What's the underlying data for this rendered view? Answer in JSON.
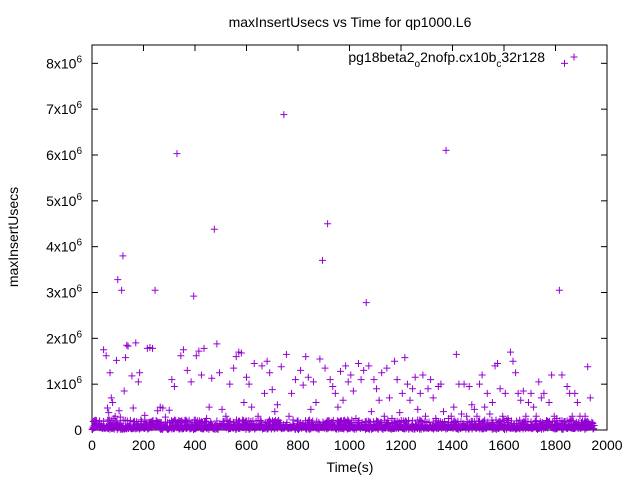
{
  "chart_data": {
    "type": "scatter",
    "title": "maxInsertUsecs vs Time for qp1000.L6",
    "xlabel": "Time(s)",
    "ylabel": "maxInsertUsecs",
    "xlim": [
      0,
      2000
    ],
    "ylim": [
      0,
      8400000
    ],
    "x_ticks": [
      0,
      200,
      400,
      600,
      800,
      1000,
      1200,
      1400,
      1600,
      1800,
      2000
    ],
    "y_ticks": [
      {
        "value": 0,
        "mant": "0",
        "exp": ""
      },
      {
        "value": 1000000,
        "mant": "1x10",
        "exp": "6"
      },
      {
        "value": 2000000,
        "mant": "2x10",
        "exp": "6"
      },
      {
        "value": 3000000,
        "mant": "3x10",
        "exp": "6"
      },
      {
        "value": 4000000,
        "mant": "4x10",
        "exp": "6"
      },
      {
        "value": 5000000,
        "mant": "5x10",
        "exp": "6"
      },
      {
        "value": 6000000,
        "mant": "6x10",
        "exp": "6"
      },
      {
        "value": 7000000,
        "mant": "7x10",
        "exp": "6"
      },
      {
        "value": 8000000,
        "mant": "8x10",
        "exp": "6"
      }
    ],
    "legend": {
      "position": "top-right",
      "parts": [
        {
          "t": "pg18beta2",
          "s": "normal"
        },
        {
          "t": "o",
          "s": "sub"
        },
        {
          "t": "2nofp.cx10b",
          "s": "normal"
        },
        {
          "t": "c",
          "s": "sub"
        },
        {
          "t": "32r128",
          "s": "normal"
        }
      ]
    },
    "series": [
      {
        "color": "#9400d3",
        "marker": "plus",
        "points": [
          [
            30,
            50000
          ],
          [
            45,
            1750000
          ],
          [
            55,
            1620000
          ],
          [
            60,
            480000
          ],
          [
            65,
            380000
          ],
          [
            70,
            1250000
          ],
          [
            75,
            700000
          ],
          [
            80,
            600000
          ],
          [
            85,
            250000
          ],
          [
            90,
            300000
          ],
          [
            95,
            1520000
          ],
          [
            100,
            3280000
          ],
          [
            105,
            420000
          ],
          [
            110,
            280000
          ],
          [
            115,
            3050000
          ],
          [
            120,
            3800000
          ],
          [
            125,
            850000
          ],
          [
            130,
            1580000
          ],
          [
            135,
            1850000
          ],
          [
            140,
            1830000
          ],
          [
            155,
            1180000
          ],
          [
            160,
            480000
          ],
          [
            170,
            1900000
          ],
          [
            180,
            1050000
          ],
          [
            185,
            1250000
          ],
          [
            190,
            220000
          ],
          [
            205,
            320000
          ],
          [
            215,
            1780000
          ],
          [
            225,
            1800000
          ],
          [
            235,
            1780000
          ],
          [
            245,
            3050000
          ],
          [
            255,
            420000
          ],
          [
            265,
            500000
          ],
          [
            275,
            480000
          ],
          [
            285,
            280000
          ],
          [
            300,
            430000
          ],
          [
            310,
            1100000
          ],
          [
            320,
            950000
          ],
          [
            330,
            6030000
          ],
          [
            345,
            1620000
          ],
          [
            355,
            1750000
          ],
          [
            370,
            1300000
          ],
          [
            385,
            1050000
          ],
          [
            395,
            2920000
          ],
          [
            405,
            1620000
          ],
          [
            415,
            1720000
          ],
          [
            425,
            1200000
          ],
          [
            435,
            1780000
          ],
          [
            445,
            250000
          ],
          [
            455,
            500000
          ],
          [
            465,
            1130000
          ],
          [
            475,
            4380000
          ],
          [
            485,
            1880000
          ],
          [
            495,
            1250000
          ],
          [
            505,
            450000
          ],
          [
            520,
            300000
          ],
          [
            535,
            1000000
          ],
          [
            550,
            1350000
          ],
          [
            560,
            1600000
          ],
          [
            570,
            1700000
          ],
          [
            580,
            1680000
          ],
          [
            590,
            600000
          ],
          [
            600,
            1150000
          ],
          [
            610,
            1000000
          ],
          [
            620,
            500000
          ],
          [
            630,
            1450000
          ],
          [
            645,
            300000
          ],
          [
            660,
            1400000
          ],
          [
            670,
            800000
          ],
          [
            680,
            1500000
          ],
          [
            690,
            1250000
          ],
          [
            700,
            880000
          ],
          [
            710,
            400000
          ],
          [
            720,
            550000
          ],
          [
            735,
            1380000
          ],
          [
            745,
            6880000
          ],
          [
            755,
            1650000
          ],
          [
            765,
            300000
          ],
          [
            775,
            800000
          ],
          [
            790,
            1100000
          ],
          [
            800,
            200000
          ],
          [
            810,
            1300000
          ],
          [
            820,
            980000
          ],
          [
            830,
            1600000
          ],
          [
            840,
            1150000
          ],
          [
            850,
            450000
          ],
          [
            860,
            1050000
          ],
          [
            870,
            600000
          ],
          [
            885,
            1550000
          ],
          [
            895,
            3700000
          ],
          [
            905,
            1350000
          ],
          [
            915,
            4500000
          ],
          [
            925,
            1100000
          ],
          [
            935,
            950000
          ],
          [
            945,
            800000
          ],
          [
            955,
            500000
          ],
          [
            965,
            1280000
          ],
          [
            975,
            650000
          ],
          [
            985,
            1400000
          ],
          [
            995,
            1050000
          ],
          [
            1005,
            1200000
          ],
          [
            1015,
            850000
          ],
          [
            1025,
            250000
          ],
          [
            1035,
            1450000
          ],
          [
            1045,
            1100000
          ],
          [
            1055,
            1300000
          ],
          [
            1065,
            2780000
          ],
          [
            1075,
            1400000
          ],
          [
            1085,
            400000
          ],
          [
            1095,
            1100000
          ],
          [
            1105,
            900000
          ],
          [
            1115,
            650000
          ],
          [
            1125,
            1250000
          ],
          [
            1135,
            300000
          ],
          [
            1145,
            1350000
          ],
          [
            1155,
            700000
          ],
          [
            1165,
            250000
          ],
          [
            1175,
            1500000
          ],
          [
            1185,
            1100000
          ],
          [
            1195,
            380000
          ],
          [
            1205,
            800000
          ],
          [
            1215,
            1580000
          ],
          [
            1225,
            1000000
          ],
          [
            1235,
            650000
          ],
          [
            1245,
            900000
          ],
          [
            1255,
            1150000
          ],
          [
            1265,
            450000
          ],
          [
            1275,
            800000
          ],
          [
            1285,
            1200000
          ],
          [
            1295,
            300000
          ],
          [
            1305,
            900000
          ],
          [
            1315,
            1100000
          ],
          [
            1325,
            700000
          ],
          [
            1335,
            250000
          ],
          [
            1345,
            950000
          ],
          [
            1355,
            1000000
          ],
          [
            1365,
            400000
          ],
          [
            1375,
            6100000
          ],
          [
            1385,
            250000
          ],
          [
            1395,
            300000
          ],
          [
            1405,
            500000
          ],
          [
            1415,
            1650000
          ],
          [
            1425,
            1000000
          ],
          [
            1435,
            350000
          ],
          [
            1445,
            1000000
          ],
          [
            1455,
            300000
          ],
          [
            1465,
            950000
          ],
          [
            1475,
            550000
          ],
          [
            1485,
            450000
          ],
          [
            1495,
            300000
          ],
          [
            1505,
            1000000
          ],
          [
            1515,
            1200000
          ],
          [
            1525,
            500000
          ],
          [
            1535,
            800000
          ],
          [
            1545,
            350000
          ],
          [
            1555,
            600000
          ],
          [
            1565,
            1400000
          ],
          [
            1575,
            1450000
          ],
          [
            1585,
            900000
          ],
          [
            1595,
            300000
          ],
          [
            1605,
            800000
          ],
          [
            1615,
            250000
          ],
          [
            1625,
            1700000
          ],
          [
            1635,
            1500000
          ],
          [
            1645,
            1250000
          ],
          [
            1655,
            800000
          ],
          [
            1665,
            650000
          ],
          [
            1675,
            850000
          ],
          [
            1685,
            300000
          ],
          [
            1695,
            600000
          ],
          [
            1705,
            800000
          ],
          [
            1715,
            500000
          ],
          [
            1725,
            300000
          ],
          [
            1735,
            1050000
          ],
          [
            1745,
            700000
          ],
          [
            1755,
            800000
          ],
          [
            1765,
            200000
          ],
          [
            1775,
            600000
          ],
          [
            1785,
            1200000
          ],
          [
            1795,
            300000
          ],
          [
            1805,
            250000
          ],
          [
            1815,
            3050000
          ],
          [
            1825,
            1200000
          ],
          [
            1835,
            8000000
          ],
          [
            1845,
            950000
          ],
          [
            1855,
            800000
          ],
          [
            1865,
            300000
          ],
          [
            1875,
            800000
          ],
          [
            1885,
            600000
          ],
          [
            1895,
            300000
          ],
          [
            1905,
            200000
          ],
          [
            1915,
            300000
          ],
          [
            1925,
            1380000
          ],
          [
            1935,
            700000
          ],
          [
            1945,
            150000
          ]
        ]
      }
    ]
  }
}
